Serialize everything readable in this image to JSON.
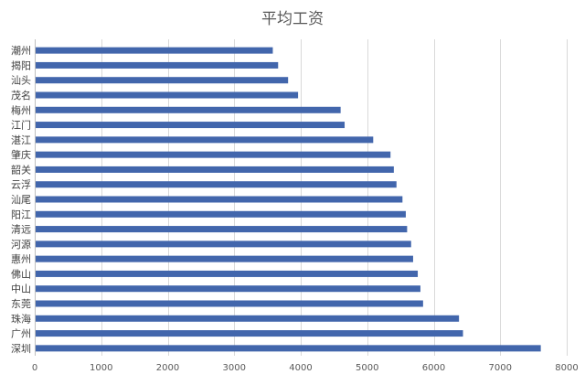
{
  "chart_data": {
    "type": "bar",
    "orientation": "horizontal",
    "title": "平均工资",
    "categories": [
      "潮州",
      "揭阳",
      "汕头",
      "茂名",
      "梅州",
      "江门",
      "湛江",
      "肇庆",
      "韶关",
      "云浮",
      "汕尾",
      "阳江",
      "清远",
      "河源",
      "惠州",
      "佛山",
      "中山",
      "东莞",
      "珠海",
      "广州",
      "深圳"
    ],
    "values": [
      3580,
      3660,
      3810,
      3960,
      4600,
      4660,
      5090,
      5350,
      5400,
      5440,
      5530,
      5580,
      5600,
      5660,
      5690,
      5760,
      5800,
      5840,
      6380,
      6440,
      7610
    ],
    "xlim": [
      0,
      8000
    ],
    "xticks": [
      0,
      1000,
      2000,
      3000,
      4000,
      5000,
      6000,
      7000,
      8000
    ],
    "grid": true,
    "legend": "none",
    "bar_color": "#4266ac"
  }
}
